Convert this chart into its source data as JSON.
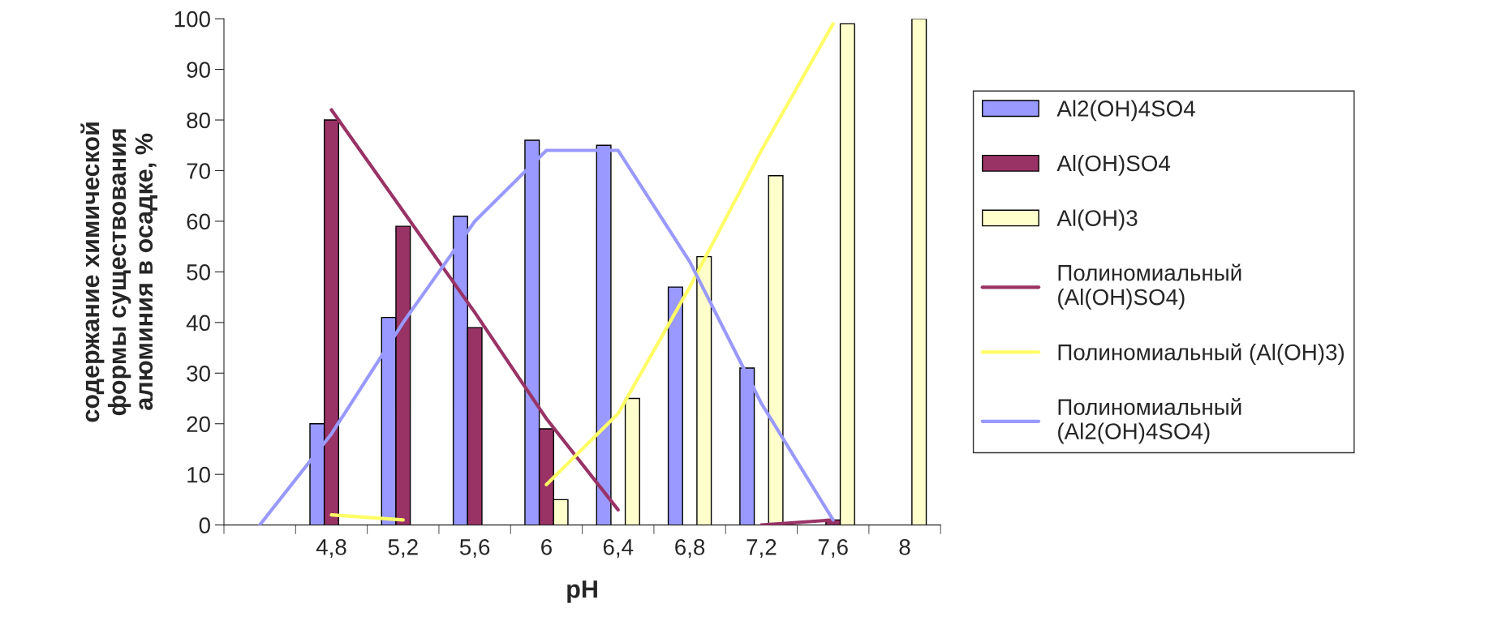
{
  "chart_data": {
    "type": "bar",
    "xlabel": "pH",
    "ylabel": "содержание химической\nформы существования\nалюминия в осадке, %",
    "categories": [
      null,
      "4,8",
      "5,2",
      "5,6",
      "6",
      "6,4",
      "6,8",
      "7,2",
      "7,6",
      "8"
    ],
    "series": [
      {
        "name": "Al2(OH)4SO4",
        "color": "#9999ff",
        "values": [
          null,
          20,
          41,
          61,
          76,
          75,
          47,
          31,
          null,
          null
        ]
      },
      {
        "name": "Al(OH)SO4",
        "color": "#993366",
        "values": [
          null,
          80,
          59,
          39,
          19,
          null,
          null,
          null,
          1,
          null
        ]
      },
      {
        "name": "Al(OH)3",
        "color": "#ffffcc",
        "values": [
          null,
          null,
          null,
          null,
          5,
          25,
          53,
          69,
          99,
          100
        ]
      },
      {
        "name": "Полиномиальный\n(Al(OH)SO4)",
        "type": "line",
        "color": "#993366",
        "values": [
          null,
          82,
          62,
          42,
          21,
          3,
          null,
          0,
          1,
          null
        ]
      },
      {
        "name": "Полиномиальный (Al(OH)3)",
        "type": "line",
        "color": "#ffff66",
        "values": [
          null,
          2,
          1,
          null,
          8,
          22,
          47,
          74,
          99,
          null
        ]
      },
      {
        "name": "Полиномиальный\n(Al2(OH)4SO4)",
        "type": "line",
        "color": "#9999ff",
        "values": [
          0,
          18,
          40,
          60,
          74,
          74,
          52,
          24,
          1,
          null
        ]
      }
    ],
    "ylim": [
      0,
      100
    ],
    "yticks": [
      0,
      10,
      20,
      30,
      40,
      50,
      60,
      70,
      80,
      90,
      100
    ],
    "grid": false,
    "legend": "right",
    "line_style": "solid"
  }
}
